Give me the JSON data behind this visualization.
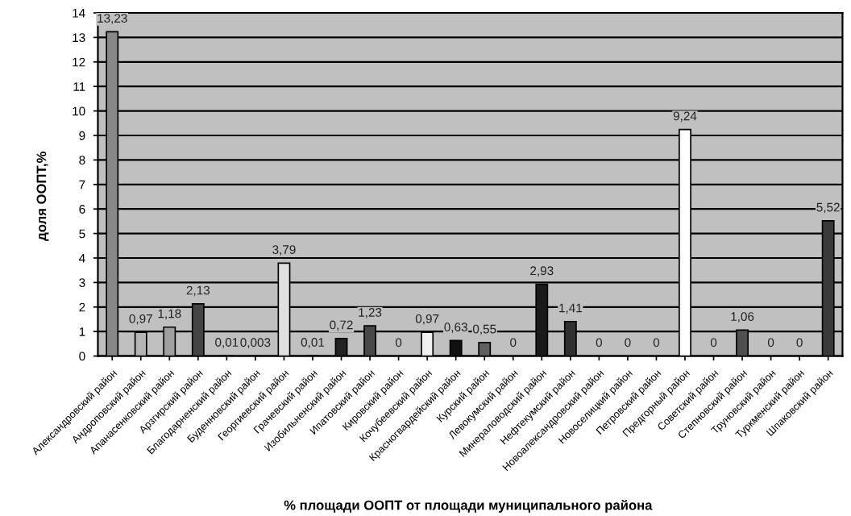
{
  "chart_data": {
    "type": "bar",
    "xlabel": "% площади ООПТ от площади муниципального района",
    "ylabel": "доля ООПТ,%",
    "categories": [
      "Александровский район",
      "Андроповский район",
      "Апанасенковский район",
      "Арзгирский район",
      "Благодарненский район",
      "Буденновский район",
      "Георгиевский район",
      "Грачевский район",
      "Изобильненский район",
      "Ипатовский район",
      "Кировский район",
      "Кочубеевский район",
      "Красногвардейский район",
      "Курский район",
      "Левокумский район",
      "Минераловодский район",
      "Нефтекумский район",
      "Новоалександровский район",
      "Новоселицкий район",
      "Петровский район",
      "Предгорный район",
      "Советский район",
      "Степновский район",
      "Труновский район",
      "Туркменский район",
      "Шпаковский район"
    ],
    "values": [
      13.23,
      0.97,
      1.18,
      2.13,
      0.01,
      0.003,
      3.79,
      0.01,
      0.72,
      1.23,
      0,
      0.97,
      0.63,
      0.55,
      0,
      2.93,
      1.41,
      0,
      0,
      0,
      9.24,
      0,
      1.06,
      0,
      0,
      5.52
    ],
    "value_labels": [
      "13,23",
      "0,97",
      "1,18",
      "2,13",
      "0,01",
      "0,003",
      "3,79",
      "0,01",
      "0,72",
      "1,23",
      "0",
      "0,97",
      "0,63",
      "0,55",
      "0",
      "2,93",
      "1,41",
      "0",
      "0",
      "0",
      "9,24",
      "0",
      "1,06",
      "0",
      "0",
      "5,52"
    ],
    "colors": [
      "#888888",
      "#b4b4b4",
      "#a0a0a0",
      "#444444",
      "#808080",
      "#808080",
      "#e0e0e0",
      "#808080",
      "#222222",
      "#484848",
      "#808080",
      "#f0f0f0",
      "#111111",
      "#606060",
      "#808080",
      "#1a1a1a",
      "#303030",
      "#808080",
      "#808080",
      "#808080",
      "#ffffff",
      "#808080",
      "#505050",
      "#808080",
      "#808080",
      "#3a3a3a"
    ],
    "ylim": [
      0,
      14
    ],
    "yticks": [
      0,
      1,
      2,
      3,
      4,
      5,
      6,
      7,
      8,
      9,
      10,
      11,
      12,
      13,
      14
    ],
    "grid": "y"
  }
}
